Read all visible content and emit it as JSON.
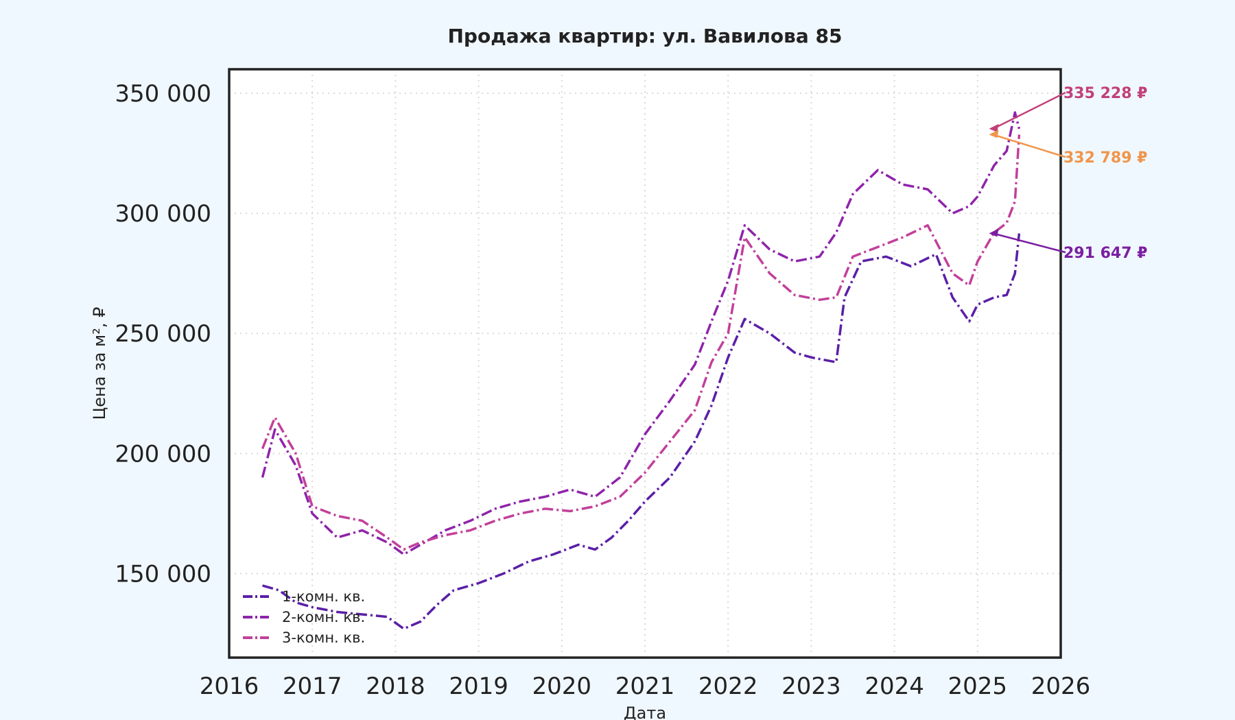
{
  "chart_data": {
    "type": "line",
    "title": "Продажа квартир: ул. Вавилова 85",
    "xlabel": "Дата",
    "ylabel": "Цена за м², ₽",
    "xlim": [
      2016,
      2026
    ],
    "ylim": [
      115000,
      360000
    ],
    "x_ticks": [
      2016,
      2017,
      2018,
      2019,
      2020,
      2021,
      2022,
      2023,
      2024,
      2025,
      2026
    ],
    "y_ticks": [
      150000,
      200000,
      250000,
      300000,
      350000
    ],
    "y_tick_labels": [
      "150 000",
      "200 000",
      "250 000",
      "300 000",
      "350 000"
    ],
    "grid": true,
    "legend_position": "lower-left",
    "series": [
      {
        "name": "1-комн. кв.",
        "color": "#5b1fa6",
        "dash": "dashdot",
        "x": [
          2016.4,
          2016.6,
          2016.8,
          2017.0,
          2017.3,
          2017.6,
          2017.9,
          2018.1,
          2018.3,
          2018.5,
          2018.7,
          2019.0,
          2019.3,
          2019.6,
          2019.9,
          2020.2,
          2020.4,
          2020.6,
          2020.8,
          2021.0,
          2021.3,
          2021.6,
          2021.8,
          2022.0,
          2022.2,
          2022.5,
          2022.8,
          2023.0,
          2023.3,
          2023.4,
          2023.6,
          2023.9,
          2024.2,
          2024.5,
          2024.7,
          2024.9,
          2025.0,
          2025.2,
          2025.35,
          2025.45,
          2025.5
        ],
        "y": [
          145000,
          143000,
          138000,
          136000,
          134000,
          133000,
          132000,
          127000,
          130000,
          137000,
          143000,
          146000,
          150000,
          155000,
          158000,
          162000,
          160000,
          165000,
          172000,
          180000,
          190000,
          205000,
          220000,
          240000,
          256000,
          250000,
          242000,
          240000,
          238000,
          265000,
          280000,
          282000,
          278000,
          283000,
          265000,
          255000,
          262000,
          265000,
          266000,
          275000,
          291647
        ]
      },
      {
        "name": "2-комн. кв.",
        "color": "#8e24aa",
        "dash": "dashdot",
        "x": [
          2016.4,
          2016.55,
          2016.8,
          2017.0,
          2017.3,
          2017.6,
          2017.9,
          2018.1,
          2018.3,
          2018.6,
          2018.9,
          2019.2,
          2019.5,
          2019.8,
          2020.1,
          2020.4,
          2020.7,
          2021.0,
          2021.3,
          2021.6,
          2021.8,
          2022.0,
          2022.2,
          2022.5,
          2022.8,
          2023.1,
          2023.3,
          2023.5,
          2023.8,
          2024.1,
          2024.4,
          2024.7,
          2024.9,
          2025.0,
          2025.2,
          2025.35,
          2025.45,
          2025.5
        ],
        "y": [
          190000,
          210000,
          195000,
          175000,
          165000,
          168000,
          163000,
          158000,
          162000,
          168000,
          172000,
          177000,
          180000,
          182000,
          185000,
          182000,
          190000,
          208000,
          222000,
          237000,
          255000,
          272000,
          295000,
          285000,
          280000,
          282000,
          292000,
          308000,
          318000,
          312000,
          310000,
          300000,
          303000,
          307000,
          320000,
          326000,
          342000,
          335228
        ]
      },
      {
        "name": "3-комн. кв.",
        "color": "#c2409a",
        "dash": "dashdot",
        "x": [
          2016.4,
          2016.55,
          2016.8,
          2017.0,
          2017.3,
          2017.6,
          2017.9,
          2018.1,
          2018.3,
          2018.6,
          2018.9,
          2019.2,
          2019.5,
          2019.8,
          2020.1,
          2020.4,
          2020.7,
          2021.0,
          2021.3,
          2021.6,
          2021.8,
          2022.0,
          2022.2,
          2022.5,
          2022.8,
          2023.1,
          2023.3,
          2023.5,
          2023.8,
          2024.1,
          2024.4,
          2024.7,
          2024.9,
          2025.0,
          2025.2,
          2025.35,
          2025.45,
          2025.5
        ],
        "y": [
          202000,
          215000,
          200000,
          178000,
          174000,
          172000,
          165000,
          160000,
          163000,
          166000,
          168000,
          172000,
          175000,
          177000,
          176000,
          178000,
          182000,
          192000,
          205000,
          218000,
          238000,
          250000,
          290000,
          275000,
          266000,
          264000,
          265000,
          282000,
          286000,
          290000,
          295000,
          275000,
          270000,
          280000,
          292000,
          296000,
          305000,
          332789
        ]
      }
    ],
    "annotations": [
      {
        "text": "335 228 ₽",
        "color": "#c2407a",
        "x": 2025.55,
        "y": 335228
      },
      {
        "text": "332 789 ₽",
        "color": "#f0954a",
        "x": 2025.55,
        "y": 332789
      },
      {
        "text": "291 647 ₽",
        "color": "#7b1fa2",
        "x": 2025.55,
        "y": 291647
      }
    ]
  }
}
